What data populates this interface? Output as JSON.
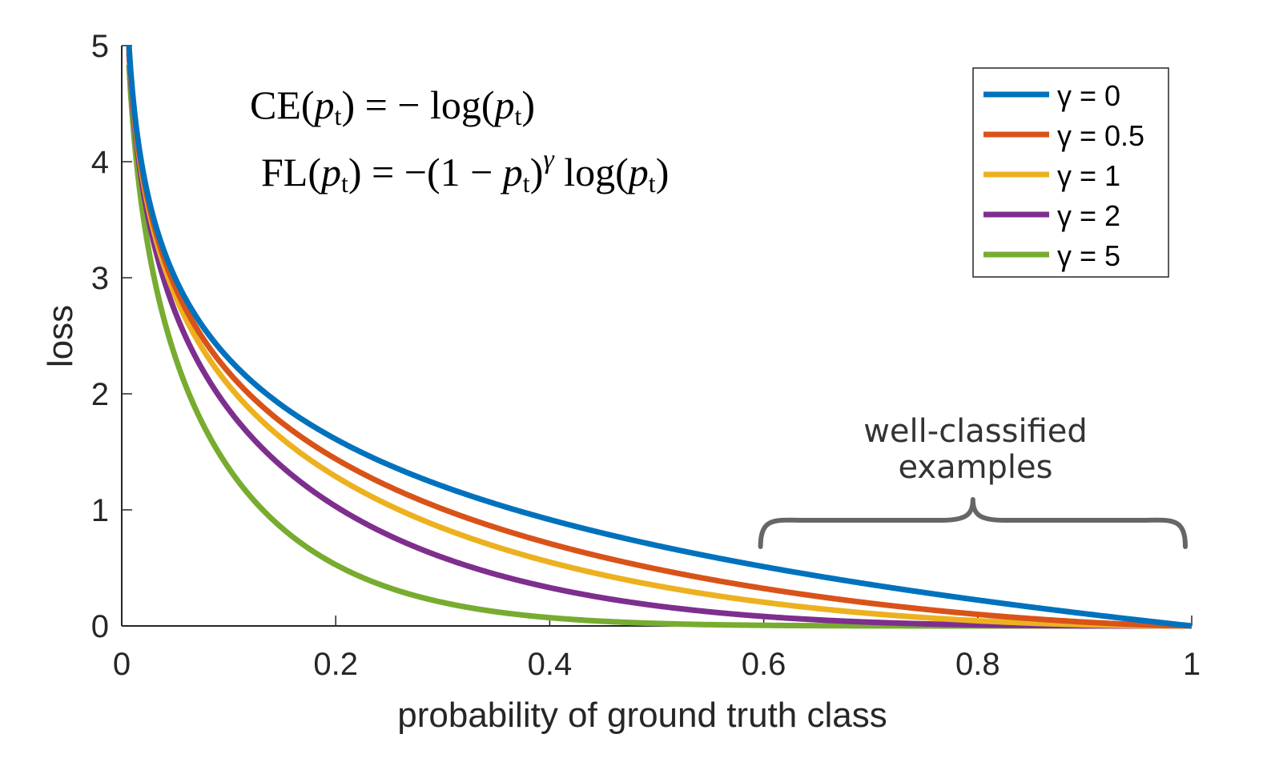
{
  "chart_data": {
    "type": "line",
    "x_label": "probability of ground truth class",
    "y_label": "loss",
    "x_range": [
      0,
      1
    ],
    "y_range": [
      0,
      5
    ],
    "x_ticks": [
      "0",
      "0.2",
      "0.4",
      "0.6",
      "0.8",
      "1"
    ],
    "y_ticks": [
      "0",
      "1",
      "2",
      "3",
      "4",
      "5"
    ],
    "x_tick_values": [
      0,
      0.2,
      0.4,
      0.6,
      0.8,
      1
    ],
    "y_tick_values": [
      0,
      1,
      2,
      3,
      4,
      5
    ],
    "formula_ce": "CE(pt) = − log(pt)",
    "formula_fl": "FL(pt) = −(1 − pt)γ log(pt)",
    "annotation_line1": "well-classified",
    "annotation_line2": "examples",
    "annotation_range": [
      0.6,
      1.0
    ],
    "legend_position": "top-right",
    "series": [
      {
        "name": "γ = 0",
        "gamma": 0,
        "color": "#0072BD"
      },
      {
        "name": "γ = 0.5",
        "gamma": 0.5,
        "color": "#D95319"
      },
      {
        "name": "γ = 1",
        "gamma": 1,
        "color": "#EDB120"
      },
      {
        "name": "γ = 2",
        "gamma": 2,
        "color": "#7E2F8E"
      },
      {
        "name": "γ = 5",
        "gamma": 5,
        "color": "#77AC30"
      }
    ],
    "function": "loss = -(1 - p)^gamma * ln(p)"
  }
}
